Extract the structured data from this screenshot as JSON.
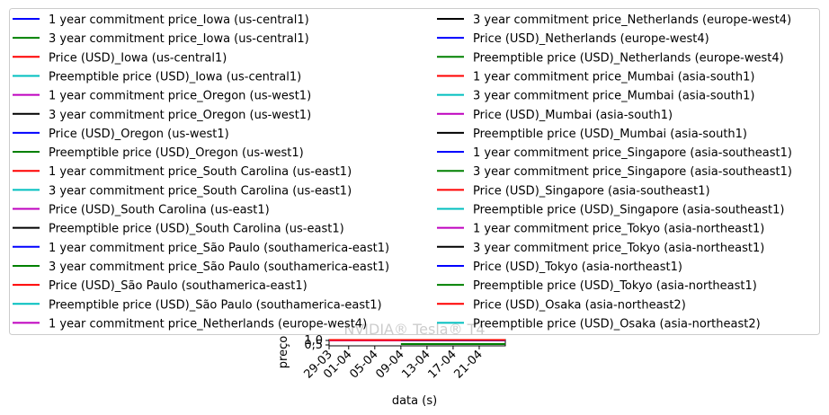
{
  "chart_data": {
    "type": "line",
    "title": "NVIDIA® Tesla® T4",
    "xlabel": "data (s)",
    "ylabel": "preço",
    "x_ticks": [
      "29-03",
      "01-04",
      "05-04",
      "09-04",
      "13-04",
      "17-04",
      "21-04"
    ],
    "y_ticks": [
      "0,5",
      "1,0"
    ],
    "ylim": [
      0.4,
      1.1
    ],
    "legend_position": "top (two columns, overlapping the plot)",
    "series": [
      {
        "name": "1 year commitment price_Iowa (us-central1)",
        "color": "#0000ff"
      },
      {
        "name": "3 year commitment price_Iowa (us-central1)",
        "color": "#008000"
      },
      {
        "name": "Price (USD)_Iowa (us-central1)",
        "color": "#ff0000"
      },
      {
        "name": "Preemptible price (USD)_Iowa (us-central1)",
        "color": "#00bfbf"
      },
      {
        "name": "1 year commitment price_Oregon (us-west1)",
        "color": "#bf00bf"
      },
      {
        "name": "3 year commitment price_Oregon (us-west1)",
        "color": "#000000"
      },
      {
        "name": "Price (USD)_Oregon (us-west1)",
        "color": "#0000ff"
      },
      {
        "name": "Preemptible price (USD)_Oregon (us-west1)",
        "color": "#008000"
      },
      {
        "name": "1 year commitment price_South Carolina (us-east1)",
        "color": "#ff0000"
      },
      {
        "name": "3 year commitment price_South Carolina (us-east1)",
        "color": "#00bfbf"
      },
      {
        "name": "Price (USD)_South Carolina (us-east1)",
        "color": "#bf00bf"
      },
      {
        "name": "Preemptible price (USD)_South Carolina (us-east1)",
        "color": "#000000"
      },
      {
        "name": "1 year commitment price_São Paulo (southamerica-east1)",
        "color": "#0000ff"
      },
      {
        "name": "3 year commitment price_São Paulo (southamerica-east1)",
        "color": "#008000"
      },
      {
        "name": "Price (USD)_São Paulo (southamerica-east1)",
        "color": "#ff0000"
      },
      {
        "name": "Preemptible price (USD)_São Paulo (southamerica-east1)",
        "color": "#00bfbf"
      },
      {
        "name": "1 year commitment price_Netherlands (europe-west4)",
        "color": "#bf00bf"
      },
      {
        "name": "3 year commitment price_Netherlands (europe-west4)",
        "color": "#000000"
      },
      {
        "name": "Price (USD)_Netherlands (europe-west4)",
        "color": "#0000ff"
      },
      {
        "name": "Preemptible price (USD)_Netherlands (europe-west4)",
        "color": "#008000"
      },
      {
        "name": "1 year commitment price_Mumbai (asia-south1)",
        "color": "#ff0000"
      },
      {
        "name": "3 year commitment price_Mumbai (asia-south1)",
        "color": "#00bfbf"
      },
      {
        "name": "Price (USD)_Mumbai (asia-south1)",
        "color": "#bf00bf"
      },
      {
        "name": "Preemptible price (USD)_Mumbai (asia-south1)",
        "color": "#000000"
      },
      {
        "name": "1 year commitment price_Singapore (asia-southeast1)",
        "color": "#0000ff"
      },
      {
        "name": "3 year commitment price_Singapore (asia-southeast1)",
        "color": "#008000"
      },
      {
        "name": "Price (USD)_Singapore (asia-southeast1)",
        "color": "#ff0000"
      },
      {
        "name": "Preemptible price (USD)_Singapore (asia-southeast1)",
        "color": "#00bfbf"
      },
      {
        "name": "1 year commitment price_Tokyo (asia-northeast1)",
        "color": "#bf00bf"
      },
      {
        "name": "3 year commitment price_Tokyo (asia-northeast1)",
        "color": "#000000"
      },
      {
        "name": "Price (USD)_Tokyo (asia-northeast1)",
        "color": "#0000ff"
      },
      {
        "name": "Preemptible price (USD)_Tokyo (asia-northeast1)",
        "color": "#008000"
      },
      {
        "name": "Price (USD)_Osaka (asia-northeast2)",
        "color": "#ff0000"
      },
      {
        "name": "Preemptible price (USD)_Osaka (asia-northeast2)",
        "color": "#00bfbf"
      }
    ],
    "visible_lines": [
      {
        "color": "#bf00bf",
        "x_start": "29-03",
        "x_end": "09-04",
        "y": 1.0
      },
      {
        "color": "#0000ff",
        "x_start": "09-04",
        "x_end": "25-04",
        "y": 1.0
      },
      {
        "color": "#ff0000",
        "x_start": "29-03",
        "x_end": "25-04",
        "y": 1.05
      },
      {
        "color": "#008000",
        "x_start": "09-04",
        "x_end": "25-04",
        "y": 0.6
      }
    ]
  }
}
